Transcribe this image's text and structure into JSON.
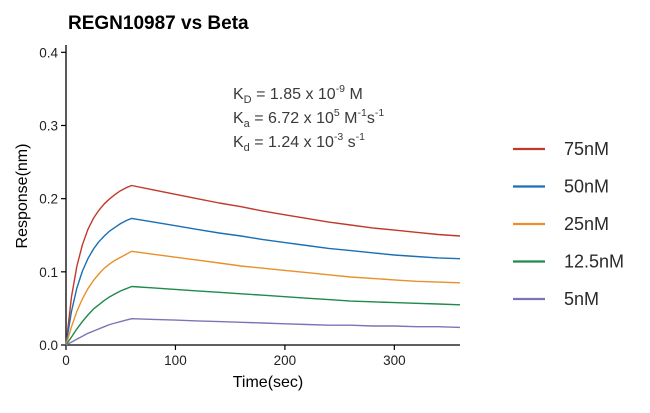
{
  "chart_data": {
    "type": "line",
    "title": "REGN10987 vs Beta",
    "xlabel": "Time(sec)",
    "ylabel": "Response(nm)",
    "xlim": [
      0,
      360
    ],
    "ylim": [
      0,
      0.41
    ],
    "x_ticks": [
      0,
      100,
      200,
      300
    ],
    "x_tick_labels": [
      "0",
      "100",
      "200",
      "300"
    ],
    "y_ticks": [
      0,
      0.1,
      0.2,
      0.3,
      0.4
    ],
    "y_tick_labels": [
      "0.0",
      "0.1",
      "0.2",
      "0.3",
      "0.4"
    ],
    "grid": false,
    "legend_position": "right",
    "annotations": {
      "kd": {
        "base": "K",
        "sub": "D",
        "main": " = 1.85 x 10",
        "exp": "-9",
        "unit": " M"
      },
      "ka": {
        "base": "K",
        "sub": "a",
        "main": " = 6.72 x 10",
        "exp": "5",
        "unit1": " M",
        "exp2": "-1",
        "unit2": "s",
        "exp3": "-1"
      },
      "kdis": {
        "base": "K",
        "sub": "d",
        "main": " = 1.24 x 10",
        "exp": "-3",
        "unit": " s",
        "exp2": "-1"
      }
    },
    "series": [
      {
        "name": "75nM",
        "color": "#c0392b",
        "x": [
          0,
          5,
          10,
          15,
          20,
          25,
          30,
          35,
          40,
          45,
          50,
          55,
          60,
          80,
          100,
          120,
          140,
          160,
          180,
          200,
          220,
          240,
          260,
          280,
          300,
          320,
          340,
          360
        ],
        "y": [
          0,
          0.066,
          0.108,
          0.137,
          0.158,
          0.173,
          0.184,
          0.193,
          0.2,
          0.206,
          0.211,
          0.215,
          0.218,
          0.212,
          0.206,
          0.2,
          0.194,
          0.189,
          0.183,
          0.178,
          0.173,
          0.168,
          0.164,
          0.16,
          0.157,
          0.154,
          0.151,
          0.149
        ]
      },
      {
        "name": "50nM",
        "color": "#1a6fb5",
        "x": [
          0,
          5,
          10,
          15,
          20,
          25,
          30,
          35,
          40,
          45,
          50,
          55,
          60,
          80,
          100,
          120,
          140,
          160,
          180,
          200,
          220,
          240,
          260,
          280,
          300,
          320,
          340,
          360
        ],
        "y": [
          0,
          0.046,
          0.078,
          0.101,
          0.118,
          0.131,
          0.141,
          0.149,
          0.156,
          0.161,
          0.166,
          0.17,
          0.173,
          0.168,
          0.163,
          0.158,
          0.153,
          0.149,
          0.144,
          0.14,
          0.136,
          0.132,
          0.129,
          0.126,
          0.123,
          0.121,
          0.119,
          0.118
        ]
      },
      {
        "name": "25nM",
        "color": "#e8902a",
        "x": [
          0,
          5,
          10,
          15,
          20,
          25,
          30,
          35,
          40,
          45,
          50,
          55,
          60,
          80,
          100,
          120,
          140,
          160,
          180,
          200,
          220,
          240,
          260,
          280,
          300,
          320,
          340,
          360
        ],
        "y": [
          0,
          0.025,
          0.046,
          0.063,
          0.077,
          0.088,
          0.097,
          0.105,
          0.111,
          0.116,
          0.12,
          0.124,
          0.128,
          0.124,
          0.12,
          0.116,
          0.112,
          0.108,
          0.105,
          0.102,
          0.099,
          0.096,
          0.093,
          0.091,
          0.089,
          0.087,
          0.086,
          0.085
        ]
      },
      {
        "name": "12.5nM",
        "color": "#1e8a4c",
        "x": [
          0,
          5,
          10,
          15,
          20,
          25,
          30,
          35,
          40,
          45,
          50,
          55,
          60,
          80,
          100,
          120,
          140,
          160,
          180,
          200,
          220,
          240,
          260,
          280,
          300,
          320,
          340,
          360
        ],
        "y": [
          0,
          0.011,
          0.022,
          0.032,
          0.041,
          0.049,
          0.055,
          0.061,
          0.066,
          0.07,
          0.074,
          0.077,
          0.08,
          0.078,
          0.076,
          0.074,
          0.072,
          0.07,
          0.068,
          0.066,
          0.064,
          0.062,
          0.06,
          0.059,
          0.058,
          0.057,
          0.056,
          0.055
        ]
      },
      {
        "name": "5nM",
        "color": "#7f73b7",
        "x": [
          0,
          5,
          10,
          15,
          20,
          25,
          30,
          35,
          40,
          45,
          50,
          55,
          60,
          80,
          100,
          120,
          140,
          160,
          180,
          200,
          220,
          240,
          260,
          280,
          300,
          320,
          340,
          360
        ],
        "y": [
          0,
          0.004,
          0.008,
          0.012,
          0.016,
          0.019,
          0.022,
          0.025,
          0.028,
          0.03,
          0.032,
          0.034,
          0.036,
          0.035,
          0.034,
          0.033,
          0.032,
          0.031,
          0.03,
          0.029,
          0.028,
          0.027,
          0.027,
          0.026,
          0.026,
          0.025,
          0.025,
          0.024
        ]
      }
    ]
  }
}
